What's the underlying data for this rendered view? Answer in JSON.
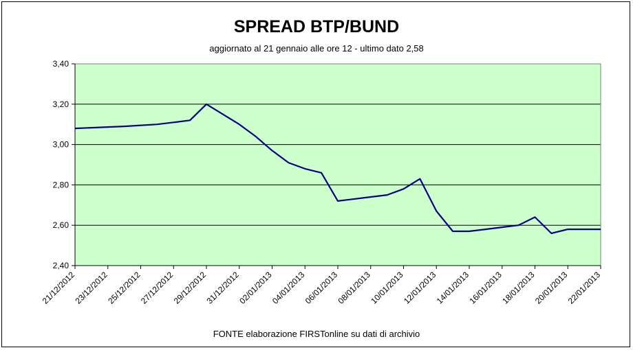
{
  "chart_data": {
    "type": "line",
    "title": "SPREAD  BTP/BUND",
    "subtitle": "aggiornato al 21 gennaio alle ore 12 - ultimo dato 2,58",
    "source_note": "FONTE elaborazione FIRSTonline su dati di archivio",
    "xlabel": "",
    "ylabel": "",
    "ylim": [
      2.4,
      3.4
    ],
    "y_ticks": [
      "2,40",
      "2,60",
      "2,80",
      "3,00",
      "3,20",
      "3,40"
    ],
    "x_ticks": [
      "21/12/2012",
      "23/12/2012",
      "25/12/2012",
      "27/12/2012",
      "29/12/2012",
      "31/12/2012",
      "02/01/2013",
      "04/01/2013",
      "06/01/2013",
      "08/01/2013",
      "10/01/2013",
      "12/01/2013",
      "14/01/2013",
      "16/01/2013",
      "18/01/2013",
      "20/01/2013",
      "22/01/2013"
    ],
    "grid": true,
    "legend": "none",
    "colors": {
      "plot_background": "#ccffcc",
      "line": "#000080",
      "grid": "#000000"
    },
    "series": [
      {
        "points": [
          {
            "date": "2012-12-21",
            "value": 3.08
          },
          {
            "date": "2012-12-24",
            "value": 3.09
          },
          {
            "date": "2012-12-26",
            "value": 3.1
          },
          {
            "date": "2012-12-27",
            "value": 3.11
          },
          {
            "date": "2012-12-28",
            "value": 3.12
          },
          {
            "date": "2012-12-29",
            "value": 3.2
          },
          {
            "date": "2012-12-31",
            "value": 3.1
          },
          {
            "date": "2013-01-01",
            "value": 3.04
          },
          {
            "date": "2013-01-02",
            "value": 2.97
          },
          {
            "date": "2013-01-03",
            "value": 2.91
          },
          {
            "date": "2013-01-04",
            "value": 2.88
          },
          {
            "date": "2013-01-05",
            "value": 2.86
          },
          {
            "date": "2013-01-06",
            "value": 2.72
          },
          {
            "date": "2013-01-08",
            "value": 2.74
          },
          {
            "date": "2013-01-09",
            "value": 2.75
          },
          {
            "date": "2013-01-10",
            "value": 2.78
          },
          {
            "date": "2013-01-11",
            "value": 2.83
          },
          {
            "date": "2013-01-12",
            "value": 2.67
          },
          {
            "date": "2013-01-13",
            "value": 2.57
          },
          {
            "date": "2013-01-14",
            "value": 2.57
          },
          {
            "date": "2013-01-15",
            "value": 2.58
          },
          {
            "date": "2013-01-16",
            "value": 2.59
          },
          {
            "date": "2013-01-17",
            "value": 2.6
          },
          {
            "date": "2013-01-18",
            "value": 2.64
          },
          {
            "date": "2013-01-19",
            "value": 2.56
          },
          {
            "date": "2013-01-20",
            "value": 2.58
          },
          {
            "date": "2013-01-21",
            "value": 2.58
          },
          {
            "date": "2013-01-22",
            "value": 2.58
          }
        ]
      }
    ]
  }
}
